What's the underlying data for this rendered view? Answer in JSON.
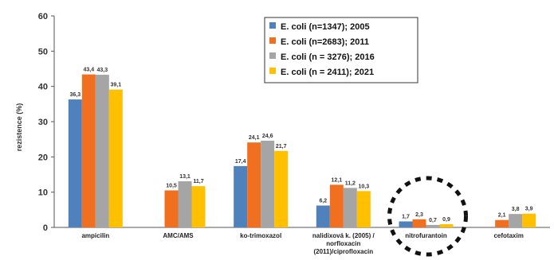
{
  "chart_data": {
    "type": "bar",
    "ylabel": "rezistence (%)",
    "ylim": [
      0,
      60
    ],
    "yticks": [
      0,
      10,
      20,
      30,
      40,
      50,
      60
    ],
    "grid": false,
    "legend_position": "top-center",
    "categories": [
      [
        "ampicilin"
      ],
      [
        "AMC/AMS"
      ],
      [
        "ko-trimoxazol"
      ],
      [
        "nalidixová k. (2005) /",
        "norfloxacin",
        "(2011)/ciprofloxacin"
      ],
      [
        "nitrofurantoin"
      ],
      [
        "cefotaxim"
      ]
    ],
    "series": [
      {
        "name": "E. coli (n=1347); 2005",
        "color": "#4f81bd",
        "values": [
          36.3,
          null,
          17.4,
          6.2,
          1.7,
          null
        ],
        "labels": [
          "36,3",
          "",
          "17,4",
          "6,2",
          "1,7",
          ""
        ]
      },
      {
        "name": "E. coli (n=2683); 2011",
        "color": "#f07020",
        "values": [
          43.4,
          10.5,
          24.1,
          12.1,
          2.3,
          2.1
        ],
        "labels": [
          "43,4",
          "10,5",
          "24,1",
          "12,1",
          "2,3",
          "2,1"
        ]
      },
      {
        "name": "E. coli (n = 3276); 2016",
        "color": "#a5a5a5",
        "values": [
          43.3,
          13.1,
          24.6,
          11.2,
          0.7,
          3.8
        ],
        "labels": [
          "43,3",
          "13,1",
          "24,6",
          "11,2",
          "0,7",
          "3,8"
        ]
      },
      {
        "name": "E. coli (n = 2411); 2021",
        "color": "#ffc000",
        "values": [
          39.1,
          11.7,
          21.7,
          10.3,
          0.9,
          3.9
        ],
        "labels": [
          "39,1",
          "11,7",
          "21,7",
          "10,3",
          "0,9",
          "3,9"
        ]
      }
    ],
    "highlight_category_index": 4
  }
}
